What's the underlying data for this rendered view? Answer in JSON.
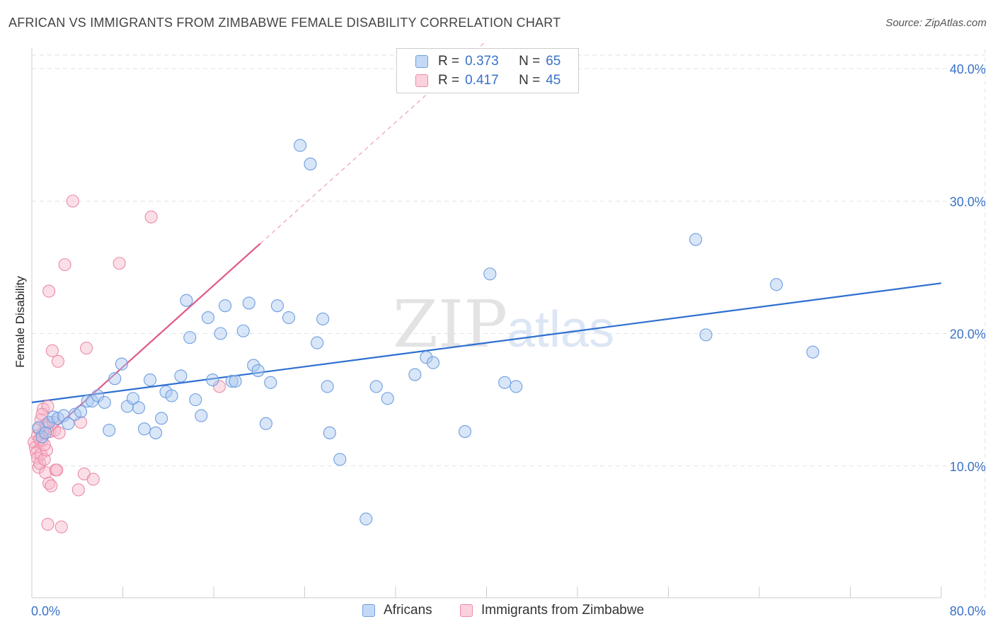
{
  "title": "AFRICAN VS IMMIGRANTS FROM ZIMBABWE FEMALE DISABILITY CORRELATION CHART",
  "source": "Source: ZipAtlas.com",
  "watermark": {
    "zip": "ZIP",
    "atlas": "atlas"
  },
  "legend_top": {
    "rows": [
      {
        "r_label": "R =",
        "r_value": "0.373",
        "n_label": "N =",
        "n_value": "65",
        "color": "#a9c8ef"
      },
      {
        "r_label": "R =",
        "r_value": "0.417",
        "n_label": "N =",
        "n_value": "45",
        "color": "#f6b8ca"
      }
    ]
  },
  "legend_bottom": [
    {
      "label": "Africans",
      "color": "#a9c8ef"
    },
    {
      "label": "Immigrants from Zimbabwe",
      "color": "#f6b8ca"
    }
  ],
  "colors": {
    "blue_fill": "#a9c8ef",
    "blue_stroke": "#6f9ee0",
    "blue_line": "#2e6fd0",
    "pink_fill": "#f6b8ca",
    "pink_stroke": "#ec8aa8",
    "pink_line": "#e0588a",
    "grid": "#dde3ea",
    "axis": "#cccccc"
  },
  "chart_data": {
    "type": "scatter",
    "title": "AFRICAN VS IMMIGRANTS FROM ZIMBABWE FEMALE DISABILITY CORRELATION CHART",
    "xlabel": "",
    "ylabel": "Female Disability",
    "xlim": [
      0,
      80
    ],
    "ylim": [
      0,
      40
    ],
    "x_tick_labels": {
      "min": "0.0%",
      "max": "80.0%"
    },
    "y_ticks": [
      10,
      20,
      30,
      40
    ],
    "y_tick_labels": [
      "10.0%",
      "20.0%",
      "30.0%",
      "40.0%"
    ],
    "grid": true,
    "series": [
      {
        "name": "Africans",
        "color": "#a9c8ef",
        "trend": {
          "x0": 0,
          "y0": 14.8,
          "x1": 80,
          "y1": 23.8
        },
        "points": [
          [
            0.6,
            12.9
          ],
          [
            0.9,
            12.2
          ],
          [
            1.2,
            12.5
          ],
          [
            1.5,
            13.3
          ],
          [
            1.9,
            13.7
          ],
          [
            2.3,
            13.6
          ],
          [
            2.8,
            13.8
          ],
          [
            3.2,
            13.2
          ],
          [
            3.8,
            13.9
          ],
          [
            4.3,
            14.1
          ],
          [
            4.9,
            14.9
          ],
          [
            5.3,
            14.9
          ],
          [
            5.8,
            15.3
          ],
          [
            6.4,
            14.8
          ],
          [
            6.8,
            12.7
          ],
          [
            7.3,
            16.6
          ],
          [
            7.9,
            17.7
          ],
          [
            8.4,
            14.5
          ],
          [
            8.9,
            15.1
          ],
          [
            9.4,
            14.4
          ],
          [
            9.9,
            12.8
          ],
          [
            10.4,
            16.5
          ],
          [
            10.9,
            12.5
          ],
          [
            11.4,
            13.6
          ],
          [
            11.8,
            15.6
          ],
          [
            12.3,
            15.3
          ],
          [
            13.1,
            16.8
          ],
          [
            13.6,
            22.5
          ],
          [
            13.9,
            19.7
          ],
          [
            14.4,
            15.0
          ],
          [
            14.9,
            13.8
          ],
          [
            15.5,
            21.2
          ],
          [
            15.9,
            16.5
          ],
          [
            16.6,
            20.0
          ],
          [
            17.0,
            22.1
          ],
          [
            17.6,
            16.4
          ],
          [
            17.9,
            16.4
          ],
          [
            18.6,
            20.2
          ],
          [
            19.1,
            22.3
          ],
          [
            19.5,
            17.6
          ],
          [
            19.9,
            17.2
          ],
          [
            20.6,
            13.2
          ],
          [
            21.0,
            16.3
          ],
          [
            21.6,
            22.1
          ],
          [
            22.6,
            21.2
          ],
          [
            23.6,
            34.2
          ],
          [
            24.5,
            32.8
          ],
          [
            25.1,
            19.3
          ],
          [
            25.6,
            21.1
          ],
          [
            26.0,
            16.0
          ],
          [
            26.2,
            12.5
          ],
          [
            27.1,
            10.5
          ],
          [
            29.4,
            6.0
          ],
          [
            30.3,
            16.0
          ],
          [
            31.3,
            15.1
          ],
          [
            33.7,
            16.9
          ],
          [
            34.7,
            18.2
          ],
          [
            35.3,
            17.8
          ],
          [
            38.1,
            12.6
          ],
          [
            40.3,
            24.5
          ],
          [
            41.6,
            16.3
          ],
          [
            42.6,
            16.0
          ],
          [
            58.4,
            27.1
          ],
          [
            59.3,
            19.9
          ],
          [
            65.5,
            23.7
          ],
          [
            68.7,
            18.6
          ]
        ]
      },
      {
        "name": "Immigrants from Zimbabwe",
        "color": "#f6b8ca",
        "trend": {
          "x0": 0,
          "y0": 11.3,
          "x1": 20.1,
          "y1": 26.8,
          "dash_to_x": 40.0,
          "dash_to_y": 42.1
        },
        "points": [
          [
            0.2,
            11.8
          ],
          [
            0.3,
            11.4
          ],
          [
            0.4,
            11.0
          ],
          [
            0.5,
            12.3
          ],
          [
            0.5,
            10.6
          ],
          [
            0.6,
            9.9
          ],
          [
            0.6,
            12.8
          ],
          [
            0.7,
            10.2
          ],
          [
            0.8,
            13.5
          ],
          [
            0.8,
            10.9
          ],
          [
            0.9,
            11.9
          ],
          [
            1.0,
            12.5
          ],
          [
            1.0,
            14.3
          ],
          [
            1.1,
            10.5
          ],
          [
            1.2,
            13.1
          ],
          [
            1.2,
            9.5
          ],
          [
            1.3,
            11.2
          ],
          [
            1.3,
            12.9
          ],
          [
            1.4,
            14.5
          ],
          [
            1.5,
            8.7
          ],
          [
            1.5,
            23.2
          ],
          [
            1.6,
            12.6
          ],
          [
            1.7,
            8.5
          ],
          [
            1.8,
            18.7
          ],
          [
            1.9,
            13.3
          ],
          [
            2.0,
            12.7
          ],
          [
            2.1,
            9.7
          ],
          [
            2.2,
            9.7
          ],
          [
            2.3,
            17.9
          ],
          [
            2.4,
            12.5
          ],
          [
            2.6,
            5.4
          ],
          [
            2.9,
            25.2
          ],
          [
            3.6,
            30.0
          ],
          [
            4.1,
            8.2
          ],
          [
            4.3,
            13.3
          ],
          [
            4.6,
            9.4
          ],
          [
            4.8,
            18.9
          ],
          [
            5.4,
            9.0
          ],
          [
            7.7,
            25.3
          ],
          [
            10.5,
            28.8
          ],
          [
            16.5,
            16.0
          ],
          [
            1.4,
            5.6
          ],
          [
            0.7,
            12.0
          ],
          [
            1.1,
            11.6
          ],
          [
            0.9,
            13.9
          ]
        ]
      }
    ]
  }
}
